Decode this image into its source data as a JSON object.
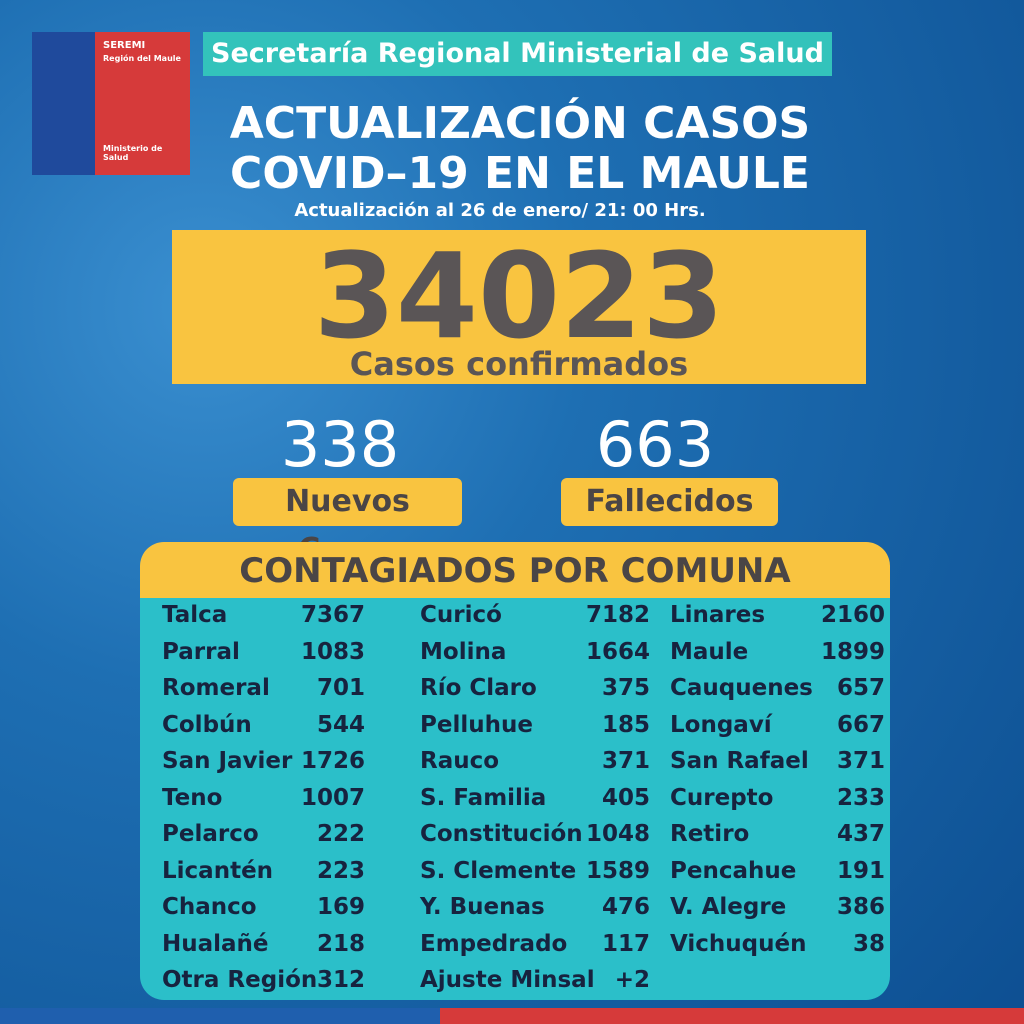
{
  "logo": {
    "brand": "SEREMI",
    "region": "Región del Maule",
    "ministry": "Ministerio de Salud"
  },
  "header": {
    "banner": "Secretaría Regional Ministerial de Salud",
    "title_line1": "ACTUALIZACIÓN CASOS",
    "title_line2": "COVID–19 EN EL MAULE",
    "subtitle": "Actualización al 26 de enero/ 21: 00 Hrs."
  },
  "total": {
    "value": 34023,
    "label": "Casos confirmados"
  },
  "stats": [
    {
      "value": 338,
      "label": "Nuevos Casos"
    },
    {
      "value": 663,
      "label": "Fallecidos"
    }
  ],
  "table": {
    "title": "CONTAGIADOS POR COMUNA",
    "rows": [
      [
        {
          "name": "Talca",
          "value": 7367
        },
        {
          "name": "Curicó",
          "value": 7182
        },
        {
          "name": "Linares",
          "value": 2160
        }
      ],
      [
        {
          "name": "Parral",
          "value": 1083
        },
        {
          "name": "Molina",
          "value": 1664
        },
        {
          "name": "Maule",
          "value": 1899
        }
      ],
      [
        {
          "name": "Romeral",
          "value": 701
        },
        {
          "name": "Río Claro",
          "value": 375
        },
        {
          "name": "Cauquenes",
          "value": 657
        }
      ],
      [
        {
          "name": "Colbún",
          "value": 544
        },
        {
          "name": "Pelluhue",
          "value": 185
        },
        {
          "name": "Longaví",
          "value": 667
        }
      ],
      [
        {
          "name": "San Javier",
          "value": 1726
        },
        {
          "name": "Rauco",
          "value": 371
        },
        {
          "name": "San Rafael",
          "value": 371
        }
      ],
      [
        {
          "name": "Teno",
          "value": 1007
        },
        {
          "name": "S. Familia",
          "value": 405
        },
        {
          "name": "Curepto",
          "value": 233
        }
      ],
      [
        {
          "name": "Pelarco",
          "value": 222
        },
        {
          "name": "Constitución",
          "value": 1048
        },
        {
          "name": "Retiro",
          "value": 437
        }
      ],
      [
        {
          "name": "Licantén",
          "value": 223
        },
        {
          "name": "S. Clemente",
          "value": 1589
        },
        {
          "name": "Pencahue",
          "value": 191
        }
      ],
      [
        {
          "name": "Chanco",
          "value": 169
        },
        {
          "name": "Y. Buenas",
          "value": 476
        },
        {
          "name": "V. Alegre",
          "value": 386
        }
      ],
      [
        {
          "name": "Hualañé",
          "value": 218
        },
        {
          "name": "Empedrado",
          "value": 117
        },
        {
          "name": "Vichuquén",
          "value": 38
        }
      ],
      [
        {
          "name": "Otra Región",
          "value": 312
        },
        {
          "name": "Ajuste Minsal",
          "value": "+2"
        }
      ]
    ]
  }
}
